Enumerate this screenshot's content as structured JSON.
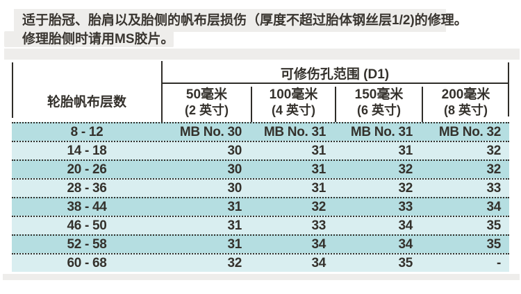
{
  "intro": {
    "line1": "适于胎冠、胎肩以及胎侧的帆布层损伤（厚度不超过胎体钢丝层1/2)的修理。",
    "line2": "修理胎侧时请用MS胶片。"
  },
  "table": {
    "row_header": "轮胎帆布层数",
    "span_header": "可修伤孔范围 (D1)",
    "columns": [
      {
        "size": "50毫米",
        "inch": "(2 英寸)"
      },
      {
        "size": "100毫米",
        "inch": "(4 英寸)"
      },
      {
        "size": "150毫米",
        "inch": "(6 英寸)"
      },
      {
        "size": "200毫米",
        "inch": "(8 英寸)"
      }
    ],
    "rows": [
      {
        "plies": "8 - 12",
        "values": [
          "MB No. 30",
          "MB No. 31",
          "MB No. 31",
          "MB No. 32"
        ]
      },
      {
        "plies": "14 - 18",
        "values": [
          "30",
          "31",
          "31",
          "32"
        ]
      },
      {
        "plies": "20 - 26",
        "values": [
          "30",
          "31",
          "32",
          "32"
        ]
      },
      {
        "plies": "28 - 36",
        "values": [
          "30",
          "31",
          "32",
          "33"
        ]
      },
      {
        "plies": "38 - 44",
        "values": [
          "31",
          "32",
          "33",
          "34"
        ]
      },
      {
        "plies": "46 - 50",
        "values": [
          "31",
          "33",
          "34",
          "35"
        ]
      },
      {
        "plies": "52 - 58",
        "values": [
          "31",
          "34",
          "34",
          "35"
        ]
      },
      {
        "plies": "60 - 68",
        "values": [
          "32",
          "34",
          "35",
          "-"
        ]
      }
    ]
  },
  "colors": {
    "row_dark": "#b5dee1",
    "row_light": "#d9eef0",
    "band_gray": "#eeedeb",
    "line": "#2e2c28",
    "text": "#34312c"
  }
}
